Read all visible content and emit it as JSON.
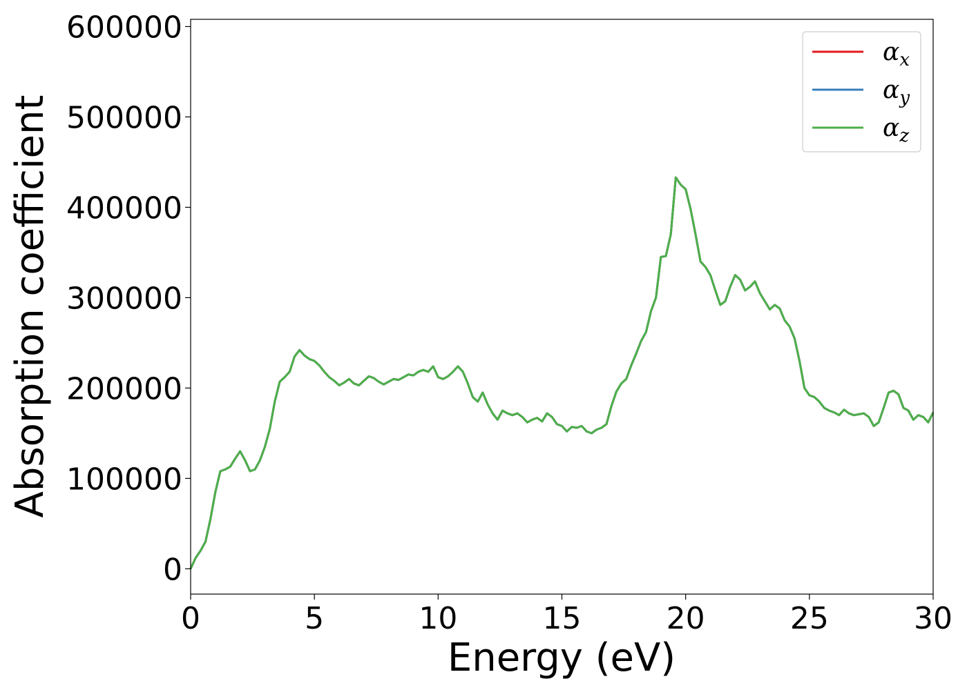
{
  "chart_data": {
    "type": "line",
    "title": "",
    "xlabel": "Energy (eV)",
    "ylabel": "Absorption coefficient",
    "xlim": [
      0,
      30
    ],
    "ylim": [
      -28000,
      608000
    ],
    "x_ticks": [
      "0",
      "5",
      "10",
      "15",
      "20",
      "25",
      "30"
    ],
    "y_ticks": [
      "0",
      "100000",
      "200000",
      "300000",
      "400000",
      "500000",
      "600000"
    ],
    "grid": false,
    "legend_position": "top-right",
    "series": [
      {
        "name": "α",
        "subscript": "x",
        "color": "#e41a1c"
      },
      {
        "name": "α",
        "subscript": "y",
        "color": "#377eb8"
      },
      {
        "name": "α",
        "subscript": "z",
        "color": "#4daf4a"
      }
    ],
    "x": [
      0,
      0.2,
      0.4,
      0.6,
      0.8,
      1.0,
      1.2,
      1.4,
      1.6,
      1.8,
      2.0,
      2.2,
      2.4,
      2.6,
      2.8,
      3.0,
      3.2,
      3.4,
      3.6,
      3.8,
      4.0,
      4.2,
      4.4,
      4.6,
      4.8,
      5.0,
      5.2,
      5.4,
      5.6,
      5.8,
      6.0,
      6.2,
      6.4,
      6.6,
      6.8,
      7.0,
      7.2,
      7.4,
      7.6,
      7.8,
      8.0,
      8.2,
      8.4,
      8.6,
      8.8,
      9.0,
      9.2,
      9.4,
      9.6,
      9.8,
      10.0,
      10.2,
      10.4,
      10.6,
      10.8,
      11.0,
      11.2,
      11.4,
      11.6,
      11.8,
      12.0,
      12.2,
      12.4,
      12.6,
      12.8,
      13.0,
      13.2,
      13.4,
      13.6,
      13.8,
      14.0,
      14.2,
      14.4,
      14.6,
      14.8,
      15.0,
      15.2,
      15.4,
      15.6,
      15.8,
      16.0,
      16.2,
      16.4,
      16.6,
      16.8,
      17.0,
      17.2,
      17.4,
      17.6,
      17.8,
      18.0,
      18.2,
      18.4,
      18.6,
      18.8,
      19.0,
      19.2,
      19.4,
      19.6,
      19.8,
      20.0,
      20.2,
      20.4,
      20.6,
      20.8,
      21.0,
      21.2,
      21.4,
      21.6,
      21.8,
      22.0,
      22.2,
      22.4,
      22.6,
      22.8,
      23.0,
      23.2,
      23.4,
      23.6,
      23.8,
      24.0,
      24.2,
      24.4,
      24.6,
      24.8,
      25.0,
      25.2,
      25.4,
      25.6,
      25.8,
      26.0,
      26.2,
      26.4,
      26.6,
      26.8,
      27.0,
      27.2,
      27.4,
      27.6,
      27.8,
      28.0,
      28.2,
      28.4,
      28.6,
      28.8,
      29.0,
      29.2,
      29.4,
      29.6,
      29.8,
      30.0
    ],
    "y": [
      0,
      12000,
      20000,
      30000,
      55000,
      85000,
      108000,
      110000,
      113000,
      122000,
      130000,
      120000,
      108000,
      110000,
      120000,
      135000,
      155000,
      185000,
      207000,
      212000,
      218000,
      235000,
      242000,
      236000,
      232000,
      230000,
      225000,
      218000,
      212000,
      208000,
      203000,
      206000,
      210000,
      205000,
      203000,
      208000,
      213000,
      211000,
      207000,
      204000,
      207000,
      210000,
      209000,
      212000,
      215000,
      214000,
      218000,
      220000,
      218000,
      224000,
      212000,
      210000,
      213000,
      218000,
      224000,
      218000,
      205000,
      190000,
      185000,
      195000,
      182000,
      172000,
      165000,
      175000,
      172000,
      170000,
      172000,
      168000,
      162000,
      165000,
      167000,
      163000,
      172000,
      168000,
      160000,
      158000,
      152000,
      157000,
      156000,
      158000,
      152000,
      150000,
      154000,
      156000,
      160000,
      180000,
      196000,
      205000,
      210000,
      225000,
      238000,
      252000,
      262000,
      285000,
      300000,
      345000,
      346000,
      370000,
      433000,
      425000,
      420000,
      398000,
      370000,
      340000,
      334000,
      325000,
      308000,
      292000,
      296000,
      312000,
      325000,
      320000,
      308000,
      312000,
      318000,
      305000,
      296000,
      287000,
      292000,
      288000,
      275000,
      268000,
      255000,
      230000,
      200000,
      192000,
      190000,
      185000,
      178000,
      175000,
      173000,
      170000,
      176000,
      172000,
      170000,
      171000,
      172000,
      168000,
      158000,
      162000,
      178000,
      195000,
      197000,
      193000,
      178000,
      175000,
      165000,
      170000,
      168000,
      162000,
      173000
    ]
  }
}
